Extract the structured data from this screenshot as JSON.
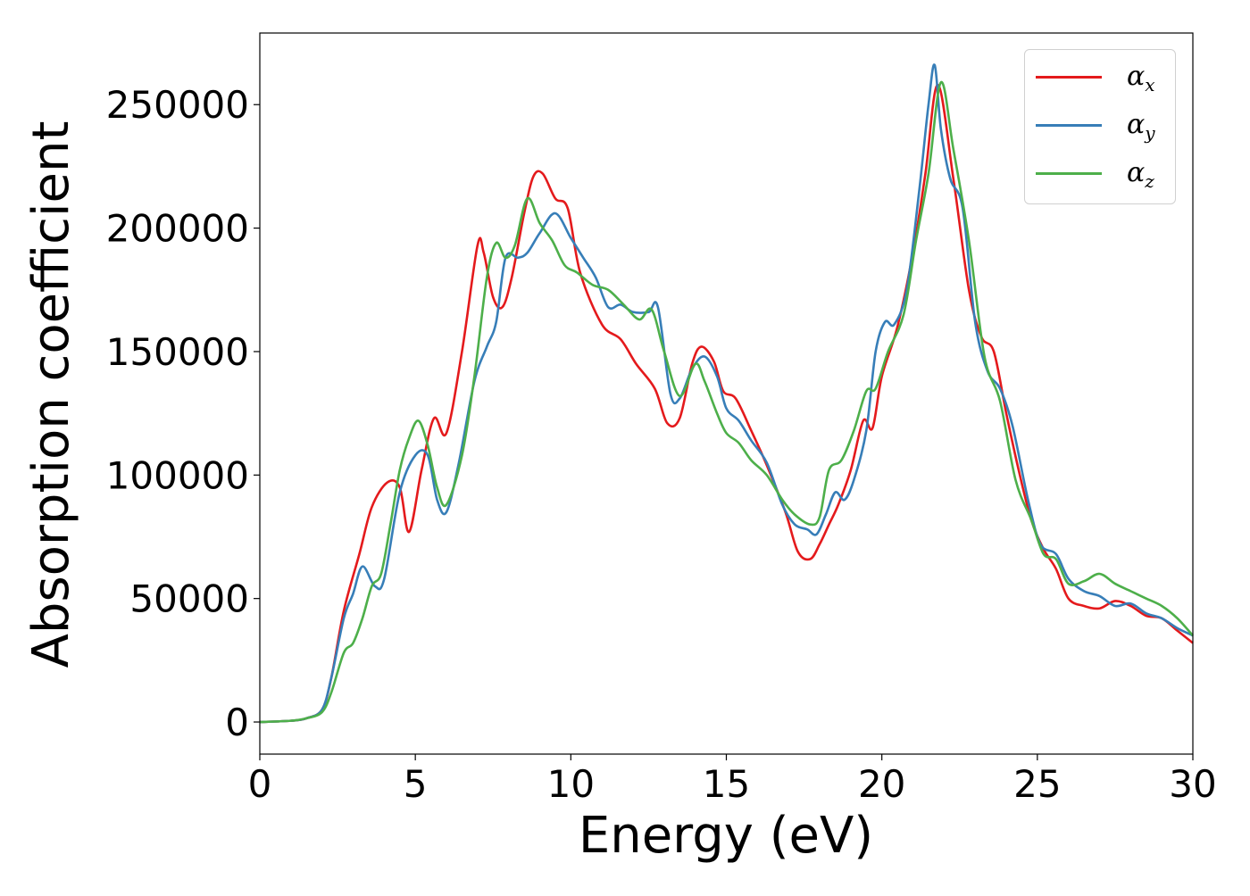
{
  "chart_data": {
    "type": "line",
    "title": "",
    "xlabel": "Energy (eV)",
    "ylabel": "Absorption coefficient",
    "xlim": [
      0,
      30
    ],
    "ylim": [
      -13000,
      279000
    ],
    "xticks": [
      0,
      5,
      10,
      15,
      20,
      25,
      30
    ],
    "yticks": [
      0,
      50000,
      100000,
      150000,
      200000,
      250000
    ],
    "grid": false,
    "legend_position": "top-right",
    "series": [
      {
        "name": "αx",
        "symbol": "α",
        "sub": "x",
        "color": "#e41a1c",
        "x": [
          0,
          1,
          1.5,
          2,
          2.3,
          2.7,
          3.2,
          3.6,
          4.1,
          4.5,
          4.8,
          5.2,
          5.6,
          6.0,
          6.5,
          7.0,
          7.2,
          7.5,
          7.8,
          8.1,
          8.5,
          8.8,
          9.1,
          9.5,
          9.9,
          10.3,
          11.0,
          11.6,
          12.1,
          12.7,
          13.1,
          13.5,
          13.9,
          14.2,
          14.6,
          14.9,
          15.3,
          15.8,
          16.3,
          16.9,
          17.3,
          17.7,
          18.0,
          18.3,
          18.6,
          19.0,
          19.4,
          19.7,
          20.0,
          20.5,
          21.0,
          21.4,
          21.8,
          22.3,
          22.8,
          23.2,
          23.6,
          24.0,
          24.4,
          24.8,
          25.2,
          25.6,
          26.0,
          26.5,
          27.0,
          27.5,
          28.0,
          28.5,
          29.0,
          29.5,
          30.0
        ],
        "y": [
          0,
          500,
          1500,
          5000,
          18000,
          45000,
          68000,
          87000,
          97000,
          95000,
          77000,
          102000,
          123000,
          117000,
          150000,
          193000,
          190000,
          172000,
          168000,
          180000,
          206000,
          221000,
          222000,
          212000,
          208000,
          182000,
          161000,
          155000,
          145000,
          135000,
          121000,
          123000,
          145000,
          152000,
          146000,
          134000,
          131000,
          118000,
          104000,
          85000,
          69000,
          66000,
          72000,
          80000,
          88000,
          102000,
          122000,
          119000,
          140000,
          160000,
          190000,
          222000,
          258000,
          220000,
          175000,
          156000,
          150000,
          125000,
          102000,
          82000,
          70000,
          62000,
          50000,
          47000,
          46000,
          49000,
          47000,
          43000,
          42000,
          37000,
          32000
        ]
      },
      {
        "name": "αy",
        "symbol": "α",
        "sub": "y",
        "color": "#377eb8",
        "x": [
          0,
          1,
          1.5,
          2,
          2.3,
          2.7,
          3.0,
          3.3,
          3.7,
          4.0,
          4.5,
          5.0,
          5.4,
          5.7,
          6.0,
          6.4,
          6.9,
          7.3,
          7.6,
          7.9,
          8.3,
          8.6,
          9.0,
          9.5,
          10.0,
          10.4,
          10.8,
          11.2,
          11.6,
          12.0,
          12.5,
          12.8,
          13.2,
          13.5,
          13.9,
          14.3,
          14.7,
          15.0,
          15.4,
          15.8,
          16.3,
          16.8,
          17.2,
          17.6,
          17.9,
          18.2,
          18.5,
          18.8,
          19.1,
          19.5,
          19.8,
          20.1,
          20.4,
          20.8,
          21.2,
          21.5,
          21.7,
          21.9,
          22.2,
          22.6,
          23.0,
          23.4,
          23.8,
          24.2,
          24.7,
          25.1,
          25.6,
          26.0,
          26.5,
          27.0,
          27.5,
          28.0,
          28.5,
          29.0,
          29.5,
          30.0
        ],
        "y": [
          0,
          500,
          1500,
          5000,
          18000,
          42000,
          52000,
          63000,
          55000,
          58000,
          93000,
          108000,
          108000,
          90000,
          85000,
          105000,
          138000,
          152000,
          162000,
          188000,
          188000,
          190000,
          198000,
          206000,
          196000,
          188000,
          180000,
          168000,
          169000,
          166000,
          166000,
          168000,
          133000,
          131000,
          143000,
          148000,
          140000,
          127000,
          122000,
          114000,
          105000,
          88000,
          80000,
          78000,
          76000,
          84000,
          93000,
          90000,
          98000,
          118000,
          150000,
          162000,
          161000,
          175000,
          215000,
          250000,
          266000,
          240000,
          220000,
          208000,
          162000,
          142000,
          135000,
          120000,
          90000,
          72000,
          68000,
          58000,
          53000,
          51000,
          47000,
          48000,
          44000,
          42000,
          38000,
          35000
        ]
      },
      {
        "name": "αz",
        "symbol": "α",
        "sub": "z",
        "color": "#4daf4a",
        "x": [
          0,
          1,
          1.5,
          2,
          2.3,
          2.7,
          3.0,
          3.3,
          3.6,
          3.9,
          4.2,
          4.5,
          4.8,
          5.1,
          5.4,
          5.7,
          6.0,
          6.5,
          6.9,
          7.3,
          7.6,
          7.9,
          8.2,
          8.6,
          9.0,
          9.4,
          9.8,
          10.2,
          10.7,
          11.2,
          11.7,
          12.2,
          12.6,
          13.0,
          13.5,
          14.0,
          14.3,
          14.7,
          15.0,
          15.4,
          15.8,
          16.3,
          16.8,
          17.2,
          17.7,
          18.0,
          18.3,
          18.7,
          19.1,
          19.5,
          19.8,
          20.2,
          20.7,
          21.1,
          21.5,
          21.9,
          22.3,
          22.8,
          23.3,
          23.8,
          24.3,
          24.8,
          25.2,
          25.6,
          26.0,
          26.5,
          27.0,
          27.5,
          28.0,
          28.5,
          29.0,
          29.5,
          30.0
        ],
        "y": [
          0,
          500,
          1500,
          4000,
          12000,
          28000,
          32000,
          42000,
          55000,
          60000,
          80000,
          102000,
          115000,
          122000,
          112000,
          95000,
          88000,
          108000,
          140000,
          180000,
          194000,
          188000,
          193000,
          212000,
          202000,
          195000,
          185000,
          182000,
          177000,
          175000,
          169000,
          163000,
          167000,
          150000,
          132000,
          145000,
          138000,
          125000,
          117000,
          113000,
          106000,
          100000,
          90000,
          84000,
          80000,
          83000,
          102000,
          106000,
          118000,
          134000,
          135000,
          150000,
          165000,
          195000,
          222000,
          259000,
          232000,
          195000,
          148000,
          130000,
          98000,
          82000,
          68000,
          66000,
          56000,
          57000,
          60000,
          56000,
          53000,
          50000,
          47000,
          42000,
          35000
        ]
      }
    ]
  }
}
